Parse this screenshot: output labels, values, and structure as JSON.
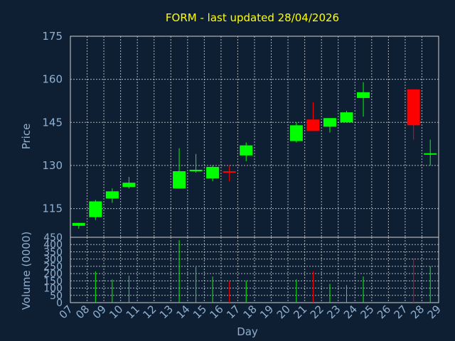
{
  "chart_data": {
    "type": "candlestick",
    "title": "FORM - last updated 28/04/2026",
    "xlabel": "Day",
    "price_panel": {
      "ylabel": "Price",
      "ylim": [
        105,
        175
      ],
      "yticks": [
        115,
        130,
        145,
        160,
        175
      ]
    },
    "volume_panel": {
      "ylabel": "Volume (0000)",
      "ylim": [
        0,
        450
      ],
      "yticks": [
        0,
        50,
        100,
        150,
        200,
        250,
        300,
        350,
        400,
        450
      ]
    },
    "x_ticks": [
      "07",
      "08",
      "09",
      "10",
      "11",
      "12",
      "13",
      "14",
      "15",
      "16",
      "17",
      "18",
      "19",
      "20",
      "21",
      "22",
      "23",
      "24",
      "25",
      "26",
      "27",
      "28",
      "29"
    ],
    "grid": true,
    "colors": {
      "up": "#00ff00",
      "down": "#ff0000"
    },
    "candles": [
      {
        "day": "07",
        "open": 109,
        "high": 110,
        "low": 108,
        "close": 110,
        "volume": 0
      },
      {
        "day": "08",
        "open": 112,
        "high": 118,
        "low": 111,
        "close": 117.5,
        "volume": 215
      },
      {
        "day": "09",
        "open": 118.5,
        "high": 122,
        "low": 117,
        "close": 121,
        "volume": 160
      },
      {
        "day": "10",
        "open": 122.5,
        "high": 126,
        "low": 122,
        "close": 124,
        "volume": 185
      },
      {
        "day": "13",
        "open": 122,
        "high": 136,
        "low": 122,
        "close": 128,
        "volume": 430
      },
      {
        "day": "14",
        "open": 128,
        "high": 134,
        "low": 127.5,
        "close": 128.5,
        "volume": 245
      },
      {
        "day": "15",
        "open": 125.5,
        "high": 130,
        "low": 124.5,
        "close": 129.5,
        "volume": 180
      },
      {
        "day": "16",
        "open": 128,
        "high": 130,
        "low": 124.5,
        "close": 127.5,
        "volume": 150
      },
      {
        "day": "17",
        "open": 133.5,
        "high": 138,
        "low": 131.5,
        "close": 137,
        "volume": 150
      },
      {
        "day": "20",
        "open": 138.5,
        "high": 145,
        "low": 138,
        "close": 144,
        "volume": 160
      },
      {
        "day": "21",
        "open": 146,
        "high": 152,
        "low": 142,
        "close": 142,
        "volume": 215
      },
      {
        "day": "22",
        "open": 143.5,
        "high": 146.5,
        "low": 141.5,
        "close": 146.5,
        "volume": 130
      },
      {
        "day": "23",
        "open": 145,
        "high": 149,
        "low": 145,
        "close": 148.5,
        "volume": 120
      },
      {
        "day": "24",
        "open": 153.5,
        "high": 159,
        "low": 147,
        "close": 155.5,
        "volume": 180
      },
      {
        "day": "27",
        "open": 156.5,
        "high": 156.5,
        "low": 139,
        "close": 144,
        "volume": 305
      },
      {
        "day": "28",
        "open": 134,
        "high": 139,
        "low": 130,
        "close": 134,
        "volume": 250
      }
    ]
  }
}
